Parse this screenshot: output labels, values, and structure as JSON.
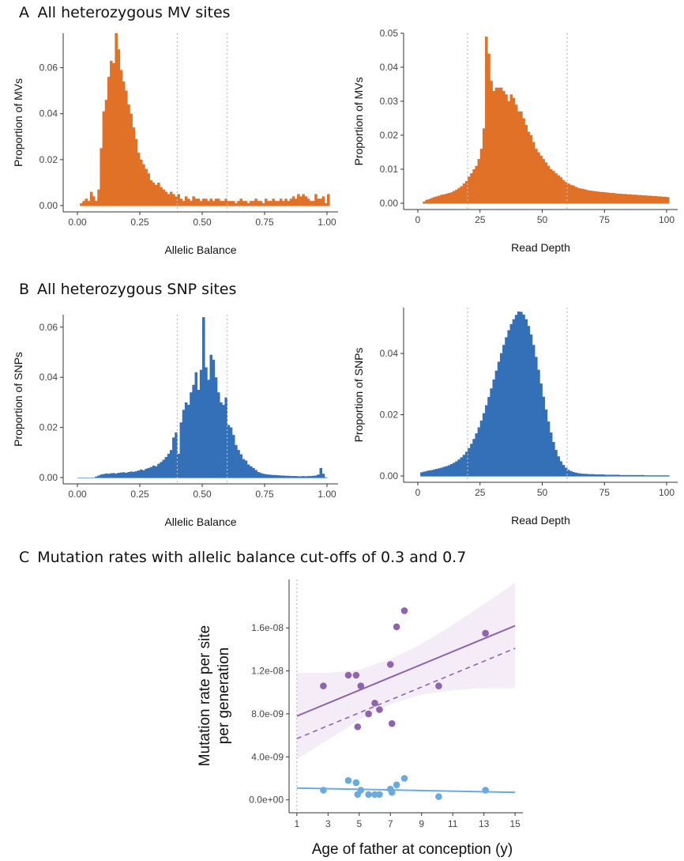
{
  "panels": {
    "A": {
      "letter": "A",
      "title": "All heterozygous MV sites"
    },
    "B": {
      "letter": "B",
      "title": "All heterozygous SNP sites"
    },
    "C": {
      "letter": "C",
      "title": "Mutation rates with allelic balance cut-offs of 0.3 and 0.7"
    }
  },
  "colors": {
    "mv": "#E07127",
    "snp": "#3470B8",
    "purple": "#8E64AE",
    "purple_fill": "#F4ECF6",
    "blue": "#6AAADF",
    "cutoff": "#BBBBBB",
    "axis": "#333333"
  },
  "chart_data": [
    {
      "id": "A1",
      "type": "bar",
      "xlabel": "Allelic Balance",
      "ylabel": "Proportion of MVs",
      "xlim": [
        0,
        1
      ],
      "ylim": [
        0,
        0.075
      ],
      "xticks": [
        "0.00",
        "0.25",
        "0.50",
        "0.75",
        "1.00"
      ],
      "yticks": [
        "0.00",
        "0.02",
        "0.04",
        "0.06"
      ],
      "cutoffs": [
        0.4,
        0.6
      ],
      "bin_width": 0.01,
      "bin_start": 0.01,
      "values": [
        0.001,
        0.002,
        0.003,
        0.002,
        0.006,
        0.004,
        0.002,
        0.007,
        0.025,
        0.041,
        0.046,
        0.056,
        0.063,
        0.062,
        0.075,
        0.068,
        0.059,
        0.054,
        0.05,
        0.044,
        0.04,
        0.034,
        0.029,
        0.023,
        0.02,
        0.018,
        0.016,
        0.014,
        0.011,
        0.01,
        0.009,
        0.01,
        0.008,
        0.007,
        0.006,
        0.005,
        0.006,
        0.005,
        0.004,
        0.005,
        0.003,
        0.002,
        0.004,
        0.003,
        0.002,
        0.004,
        0.003,
        0.003,
        0.002,
        0.003,
        0.003,
        0.002,
        0.003,
        0.002,
        0.003,
        0.003,
        0.002,
        0.002,
        0.003,
        0.002,
        0.002,
        0.002,
        0.001,
        0.002,
        0.003,
        0.002,
        0.002,
        0.001,
        0.002,
        0.002,
        0.003,
        0.002,
        0.002,
        0.001,
        0.003,
        0.002,
        0.002,
        0.003,
        0.002,
        0.002,
        0.003,
        0.002,
        0.003,
        0.002,
        0.003,
        0.004,
        0.003,
        0.005,
        0.004,
        0.005,
        0.004,
        0.003,
        0.002,
        0.002,
        0.005,
        0.003,
        0.003,
        0.004,
        0.001,
        0.005
      ]
    },
    {
      "id": "A2",
      "type": "bar",
      "xlabel": "Read Depth",
      "ylabel": "Proportion of MVs",
      "xlim": [
        0,
        100
      ],
      "ylim": [
        0,
        0.05
      ],
      "xticks": [
        "0",
        "25",
        "50",
        "75",
        "100"
      ],
      "yticks": [
        "0.00",
        "0.01",
        "0.02",
        "0.03",
        "0.04",
        "0.05"
      ],
      "cutoffs": [
        20,
        60
      ],
      "bin_width": 1,
      "bin_start": 2,
      "values": [
        0.0005,
        0.001,
        0.0012,
        0.0015,
        0.0018,
        0.002,
        0.0022,
        0.0025,
        0.0026,
        0.0028,
        0.003,
        0.0032,
        0.0036,
        0.004,
        0.0045,
        0.005,
        0.0058,
        0.0065,
        0.0078,
        0.0088,
        0.01,
        0.011,
        0.013,
        0.016,
        0.022,
        0.049,
        0.044,
        0.036,
        0.033,
        0.034,
        0.034,
        0.034,
        0.033,
        0.032,
        0.03,
        0.032,
        0.031,
        0.029,
        0.027,
        0.027,
        0.025,
        0.023,
        0.021,
        0.02,
        0.018,
        0.016,
        0.015,
        0.014,
        0.013,
        0.012,
        0.011,
        0.01,
        0.0095,
        0.0088,
        0.0082,
        0.0076,
        0.0068,
        0.0062,
        0.0058,
        0.0054,
        0.0052,
        0.0048,
        0.0045,
        0.0043,
        0.0042,
        0.004,
        0.0038,
        0.0037,
        0.0036,
        0.0035,
        0.0034,
        0.0033,
        0.0033,
        0.0032,
        0.0031,
        0.003,
        0.003,
        0.0029,
        0.0028,
        0.0028,
        0.0027,
        0.0027,
        0.0026,
        0.0026,
        0.0025,
        0.0025,
        0.0024,
        0.0024,
        0.0023,
        0.0023,
        0.0022,
        0.0022,
        0.0021,
        0.0021,
        0.002,
        0.002,
        0.0019,
        0.0019,
        0.0018
      ]
    },
    {
      "id": "B1",
      "type": "bar",
      "xlabel": "Allelic Balance",
      "ylabel": "Proportion of SNPs",
      "xlim": [
        0,
        1
      ],
      "ylim": [
        0,
        0.065
      ],
      "xticks": [
        "0.00",
        "0.25",
        "0.50",
        "0.75",
        "1.00"
      ],
      "yticks": [
        "0.00",
        "0.02",
        "0.04",
        "0.06"
      ],
      "cutoffs": [
        0.4,
        0.6
      ],
      "bin_width": 0.01,
      "bin_start": 0.0,
      "values": [
        0,
        0,
        0,
        0,
        0,
        0,
        0,
        0.0004,
        0.0008,
        0.0012,
        0.0014,
        0.0016,
        0.0015,
        0.0017,
        0.0018,
        0.0016,
        0.0019,
        0.002,
        0.0021,
        0.0019,
        0.0022,
        0.0024,
        0.0023,
        0.0025,
        0.0028,
        0.0032,
        0.0029,
        0.0035,
        0.0038,
        0.0042,
        0.0048,
        0.0045,
        0.0055,
        0.0062,
        0.0071,
        0.0082,
        0.0095,
        0.011,
        0.016,
        0.018,
        0.0095,
        0.022,
        0.027,
        0.03,
        0.029,
        0.034,
        0.037,
        0.042,
        0.035,
        0.043,
        0.064,
        0.044,
        0.039,
        0.049,
        0.047,
        0.04,
        0.034,
        0.03,
        0.029,
        0.032,
        0.021,
        0.02,
        0.017,
        0.013,
        0.011,
        0.0093,
        0.0074,
        0.0068,
        0.0052,
        0.0045,
        0.0038,
        0.003,
        0.0022,
        0.0018,
        0.0015,
        0.0013,
        0.0012,
        0.0011,
        0.001,
        0.001,
        0.0009,
        0.0008,
        0.0008,
        0.0007,
        0.0007,
        0.0006,
        0.0006,
        0.0006,
        0.0005,
        0.0005,
        0.0006,
        0.0005,
        0.0006,
        0.0006,
        0.0007,
        0.0008,
        0.0012,
        0.0038,
        0.0015,
        0.0001
      ]
    },
    {
      "id": "B2",
      "type": "bar",
      "xlabel": "Read Depth",
      "ylabel": "Proportion of SNPs",
      "xlim": [
        0,
        100
      ],
      "ylim": [
        0,
        0.055
      ],
      "xticks": [
        "0",
        "25",
        "50",
        "75",
        "100"
      ],
      "yticks": [
        "0.00",
        "0.02",
        "0.04"
      ],
      "cutoffs": [
        20,
        60
      ],
      "bin_width": 1,
      "bin_start": 1,
      "values": [
        0.0012,
        0.0014,
        0.0016,
        0.0018,
        0.0019,
        0.0021,
        0.0023,
        0.0025,
        0.0027,
        0.003,
        0.0032,
        0.0035,
        0.0039,
        0.0043,
        0.0048,
        0.0054,
        0.0061,
        0.0069,
        0.0079,
        0.0091,
        0.0105,
        0.0121,
        0.0139,
        0.0159,
        0.0181,
        0.0205,
        0.0231,
        0.0258,
        0.0286,
        0.0315,
        0.0344,
        0.0373,
        0.0401,
        0.0428,
        0.0453,
        0.0476,
        0.0496,
        0.0512,
        0.0526,
        0.0537,
        0.0536,
        0.0527,
        0.0512,
        0.049,
        0.0462,
        0.0428,
        0.0389,
        0.0347,
        0.0302,
        0.0259,
        0.0217,
        0.0178,
        0.0142,
        0.0111,
        0.0085,
        0.0064,
        0.0048,
        0.0036,
        0.0027,
        0.002,
        0.0016,
        0.0013,
        0.0011,
        0.0009,
        0.0008,
        0.0007,
        0.0007,
        0.0006,
        0.0006,
        0.0006,
        0.0005,
        0.0005,
        0.0005,
        0.0005,
        0.0004,
        0.0004,
        0.0004,
        0.0004,
        0.0004,
        0.0004,
        0.0003,
        0.0003,
        0.0003,
        0.0003,
        0.0003,
        0.0003,
        0.0003,
        0.0003,
        0.0003,
        0.0003,
        0.0002,
        0.0002,
        0.0002,
        0.0002,
        0.0002,
        0.0002,
        0.0002,
        0.0002,
        0.0002,
        0.0002
      ]
    },
    {
      "id": "C",
      "type": "scatter",
      "xlabel": "Age of father at conception (y)",
      "ylabel_line1": "Mutation rate per site",
      "ylabel_line2": "per generation",
      "xlim": [
        0.5,
        15.5
      ],
      "ylim": [
        -1.2e-09,
        2.05e-08
      ],
      "xticks": [
        1,
        3,
        5,
        7,
        9,
        11,
        15
      ],
      "xtick_labels": [
        "1",
        "3",
        "5",
        "7",
        "9",
        "11",
        "15"
      ],
      "xticks_major": [
        1,
        3,
        5,
        7,
        9,
        11,
        13,
        15
      ],
      "xtick_major_labels": [
        "1",
        "3",
        "5",
        "7",
        "9",
        "11",
        "13",
        "15"
      ],
      "yticks": [
        0,
        4e-09,
        8e-09,
        1.2e-08,
        1.6e-08
      ],
      "ytick_labels": [
        "0.0e+00",
        "4.0e-09",
        "8.0e-09",
        "1.2e-08",
        "1.6e-08"
      ],
      "cutoff_x": 1,
      "series": [
        {
          "points": [
            [
              2.7,
              1.06e-08
            ],
            [
              4.3,
              1.16e-08
            ],
            [
              4.8,
              1.16e-08
            ],
            [
              4.9,
              6.8e-09
            ],
            [
              5.1,
              1.06e-08
            ],
            [
              5.6,
              8e-09
            ],
            [
              6.0,
              9e-09
            ],
            [
              6.3,
              8.4e-09
            ],
            [
              7.0,
              1.26e-08
            ],
            [
              7.1,
              7.1e-09
            ],
            [
              7.4,
              1.61e-08
            ],
            [
              7.9,
              1.76e-08
            ],
            [
              10.1,
              1.06e-08
            ],
            [
              13.1,
              1.55e-08
            ]
          ],
          "fit_solid": [
            [
              1,
              7.8e-09
            ],
            [
              15,
              1.62e-08
            ]
          ],
          "fit_dashed": [
            [
              1,
              5.7e-09
            ],
            [
              15,
              1.41e-08
            ]
          ],
          "ribbon_upper": [
            [
              1,
              1.18e-08
            ],
            [
              3,
              1.18e-08
            ],
            [
              5,
              1.21e-08
            ],
            [
              7,
              1.31e-08
            ],
            [
              9,
              1.45e-08
            ],
            [
              11,
              1.63e-08
            ],
            [
              13,
              1.82e-08
            ],
            [
              15,
              2.02e-08
            ]
          ],
          "ribbon_lower": [
            [
              1,
              3.8e-09
            ],
            [
              3,
              5.6e-09
            ],
            [
              5,
              7.4e-09
            ],
            [
              7,
              8.9e-09
            ],
            [
              9,
              9.8e-09
            ],
            [
              11,
              1.02e-08
            ],
            [
              13,
              1.04e-08
            ],
            [
              15,
              1.04e-08
            ]
          ]
        },
        {
          "points": [
            [
              2.7,
              9e-10
            ],
            [
              4.3,
              1.8e-09
            ],
            [
              4.8,
              1.6e-09
            ],
            [
              4.9,
              5e-10
            ],
            [
              5.1,
              9e-10
            ],
            [
              5.6,
              5e-10
            ],
            [
              6.0,
              5e-10
            ],
            [
              6.3,
              5e-10
            ],
            [
              7.0,
              1e-09
            ],
            [
              7.1,
              7e-10
            ],
            [
              7.4,
              1.4e-09
            ],
            [
              7.9,
              2e-09
            ],
            [
              10.1,
              3e-10
            ],
            [
              13.1,
              9e-10
            ]
          ],
          "fit_solid": [
            [
              1,
              1.1e-09
            ],
            [
              15,
              7e-10
            ]
          ]
        }
      ]
    }
  ]
}
